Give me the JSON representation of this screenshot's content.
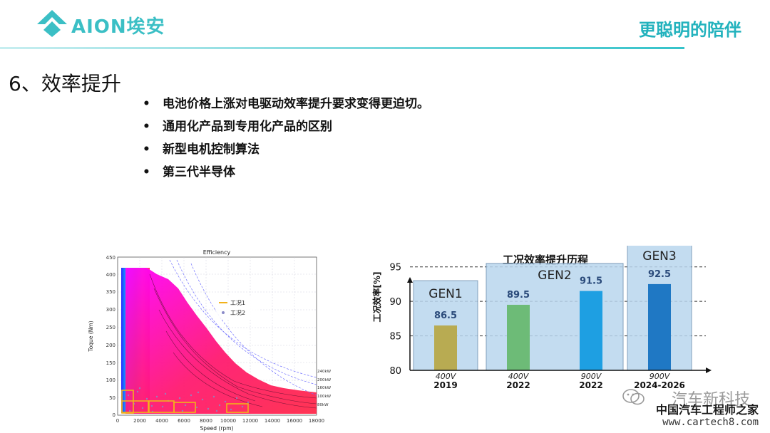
{
  "header": {
    "brand_text": "AION埃安",
    "tagline": "更聪明的陪伴",
    "brand_color": "#3bbfc5"
  },
  "slide": {
    "title": "6、效率提升",
    "bullets": [
      "电池价格上涨对电驱动效率提升要求变得更迫切。",
      "通用化产品到专用化产品的区别",
      "新型电机控制算法",
      "第三代半导体"
    ]
  },
  "efficiency_map": {
    "title": "Efficiency",
    "xlabel": "Speed (rpm)",
    "ylabel": "Toque (Nm)",
    "x_ticks": [
      "0",
      "2000",
      "4000",
      "6000",
      "8000",
      "10000",
      "12000",
      "14000",
      "16000",
      "18000"
    ],
    "y_ticks": [
      "0",
      "50",
      "100",
      "150",
      "200",
      "250",
      "300",
      "350",
      "400",
      "450"
    ],
    "power_labels": [
      "240kW",
      "200kW",
      "160kW",
      "100kW",
      "80kW"
    ],
    "legend": [
      "工况1",
      "工况2"
    ]
  },
  "chart_data": {
    "type": "bar",
    "title": "工况效率提升历程",
    "ylabel": "工况效率[%]",
    "ylim": [
      80,
      96
    ],
    "y_ticks": [
      "80",
      "85",
      "90",
      "95"
    ],
    "categories": [
      "2019",
      "2022",
      "2022",
      "2024-2026"
    ],
    "voltages": [
      "400V",
      "400V",
      "900V",
      "900V"
    ],
    "values": [
      86.5,
      89.5,
      91.5,
      92.5
    ],
    "value_labels": [
      "86.5",
      "89.5",
      "91.5",
      "92.5"
    ],
    "bar_colors": [
      "#b8ab52",
      "#6dbb77",
      "#1e9fe2",
      "#1f78c4"
    ],
    "generations": [
      {
        "label": "GEN1",
        "first": 0,
        "last": 0,
        "top": 93
      },
      {
        "label": "GEN2",
        "first": 1,
        "last": 2,
        "top": 95.5
      },
      {
        "label": "GEN3",
        "first": 3,
        "last": 3,
        "top": 98.5
      }
    ]
  },
  "watermark": {
    "text": "汽车新科技",
    "cn": "中国汽车工程师之家",
    "url": "www.cartech8.com"
  }
}
